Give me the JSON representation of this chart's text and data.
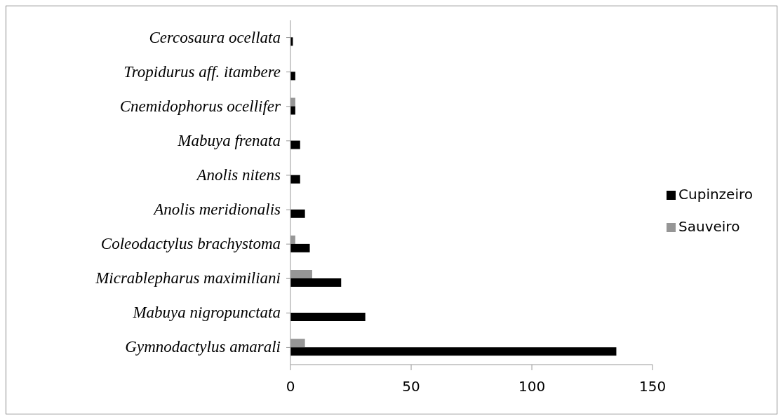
{
  "chart_data": {
    "type": "bar",
    "orientation": "horizontal",
    "categories": [
      "Cercosaura ocellata",
      "Tropidurus aff. itambere",
      "Cnemidophorus ocellifer",
      "Mabuya frenata",
      "Anolis nitens",
      "Anolis meridionalis",
      "Coleodactylus brachystoma",
      "Micrablepharus maximiliani",
      "Mabuya nigropunctata",
      "Gymnodactylus amarali"
    ],
    "series": [
      {
        "name": "Sauveiro",
        "color": "#969696",
        "values": [
          0,
          0,
          2,
          0,
          0,
          0,
          2,
          9,
          0,
          6
        ]
      },
      {
        "name": "Cupinzeiro",
        "color": "#000000",
        "values": [
          1,
          2,
          2,
          4,
          4,
          6,
          8,
          21,
          31,
          135
        ]
      }
    ],
    "xlim": [
      0,
      150
    ],
    "xticks": [
      0,
      50,
      100,
      150
    ],
    "grid": false,
    "legend": "right"
  }
}
